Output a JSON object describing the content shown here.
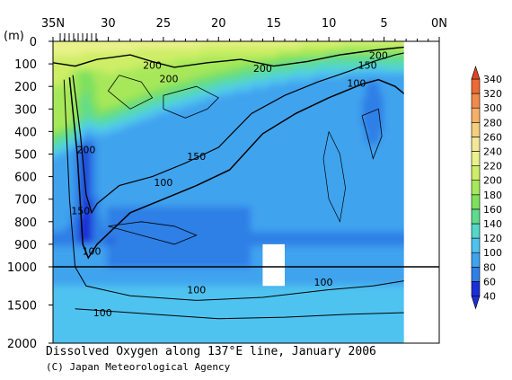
{
  "chart_data": {
    "type": "heatmap",
    "title": "Dissolved Oxygen along 137°E line, January 2006",
    "credit": "(C) Japan Meteorological Agency",
    "x_axis": {
      "ticks": [
        "35N",
        "30",
        "25",
        "20",
        "15",
        "10",
        "5",
        "0N"
      ],
      "tick_values": [
        35,
        30,
        25,
        20,
        15,
        10,
        5,
        0
      ],
      "range": [
        35,
        0
      ],
      "reversed": true
    },
    "y_axis": {
      "unit": "(m)",
      "ticks": [
        "0",
        "100",
        "200",
        "300",
        "400",
        "500",
        "600",
        "700",
        "800",
        "900",
        "1000",
        "1500",
        "2000"
      ],
      "tick_values": [
        0,
        100,
        200,
        300,
        400,
        500,
        600,
        700,
        800,
        900,
        1000,
        1500,
        2000
      ],
      "range": [
        0,
        2000
      ],
      "scale": "piecewise linear: 0-1000 m expanded, 1000-2000 m compressed",
      "reference_line": 1000
    },
    "colorbar": {
      "ticks": [
        "340",
        "320",
        "300",
        "280",
        "260",
        "240",
        "220",
        "200",
        "180",
        "160",
        "140",
        "120",
        "100",
        "80",
        "60",
        "40"
      ],
      "levels": [
        40,
        60,
        80,
        100,
        120,
        140,
        160,
        180,
        200,
        220,
        240,
        260,
        280,
        300,
        320,
        340
      ],
      "colors": [
        "#1a2fd6",
        "#2f7fe6",
        "#3fa3ee",
        "#4fc3f0",
        "#52d7c9",
        "#5fdb8f",
        "#7fe05f",
        "#a7e85a",
        "#cdee66",
        "#e9f28a",
        "#f3e79a",
        "#f6cf7e",
        "#f5b066",
        "#f28a4a",
        "#ee6a35",
        "#e24520"
      ],
      "extend": "both"
    },
    "contour_labels": [
      {
        "text": "200",
        "lat": 26.0,
        "depth": 105
      },
      {
        "text": "200",
        "lat": 24.5,
        "depth": 165
      },
      {
        "text": "200",
        "lat": 16.0,
        "depth": 120
      },
      {
        "text": "200",
        "lat": 5.5,
        "depth": 62
      },
      {
        "text": "150",
        "lat": 6.5,
        "depth": 105
      },
      {
        "text": "100",
        "lat": 7.5,
        "depth": 185
      },
      {
        "text": "200",
        "lat": 32.0,
        "depth": 480
      },
      {
        "text": "150",
        "lat": 22.0,
        "depth": 510
      },
      {
        "text": "100",
        "lat": 25.0,
        "depth": 625
      },
      {
        "text": "150",
        "lat": 32.5,
        "depth": 750
      },
      {
        "text": "100",
        "lat": 31.5,
        "depth": 930
      },
      {
        "text": "100",
        "lat": 22.0,
        "depth": 1300
      },
      {
        "text": "100",
        "lat": 10.5,
        "depth": 1200
      },
      {
        "text": "100",
        "lat": 30.5,
        "depth": 1600
      }
    ],
    "missing_regions": [
      {
        "lat_from": 16.0,
        "lat_to": 14.0,
        "depth_from": 900,
        "depth_to": 1250
      },
      {
        "lat_from": 3.2,
        "lat_to": 0.0,
        "depth_from": 0,
        "depth_to": 2000
      }
    ]
  }
}
